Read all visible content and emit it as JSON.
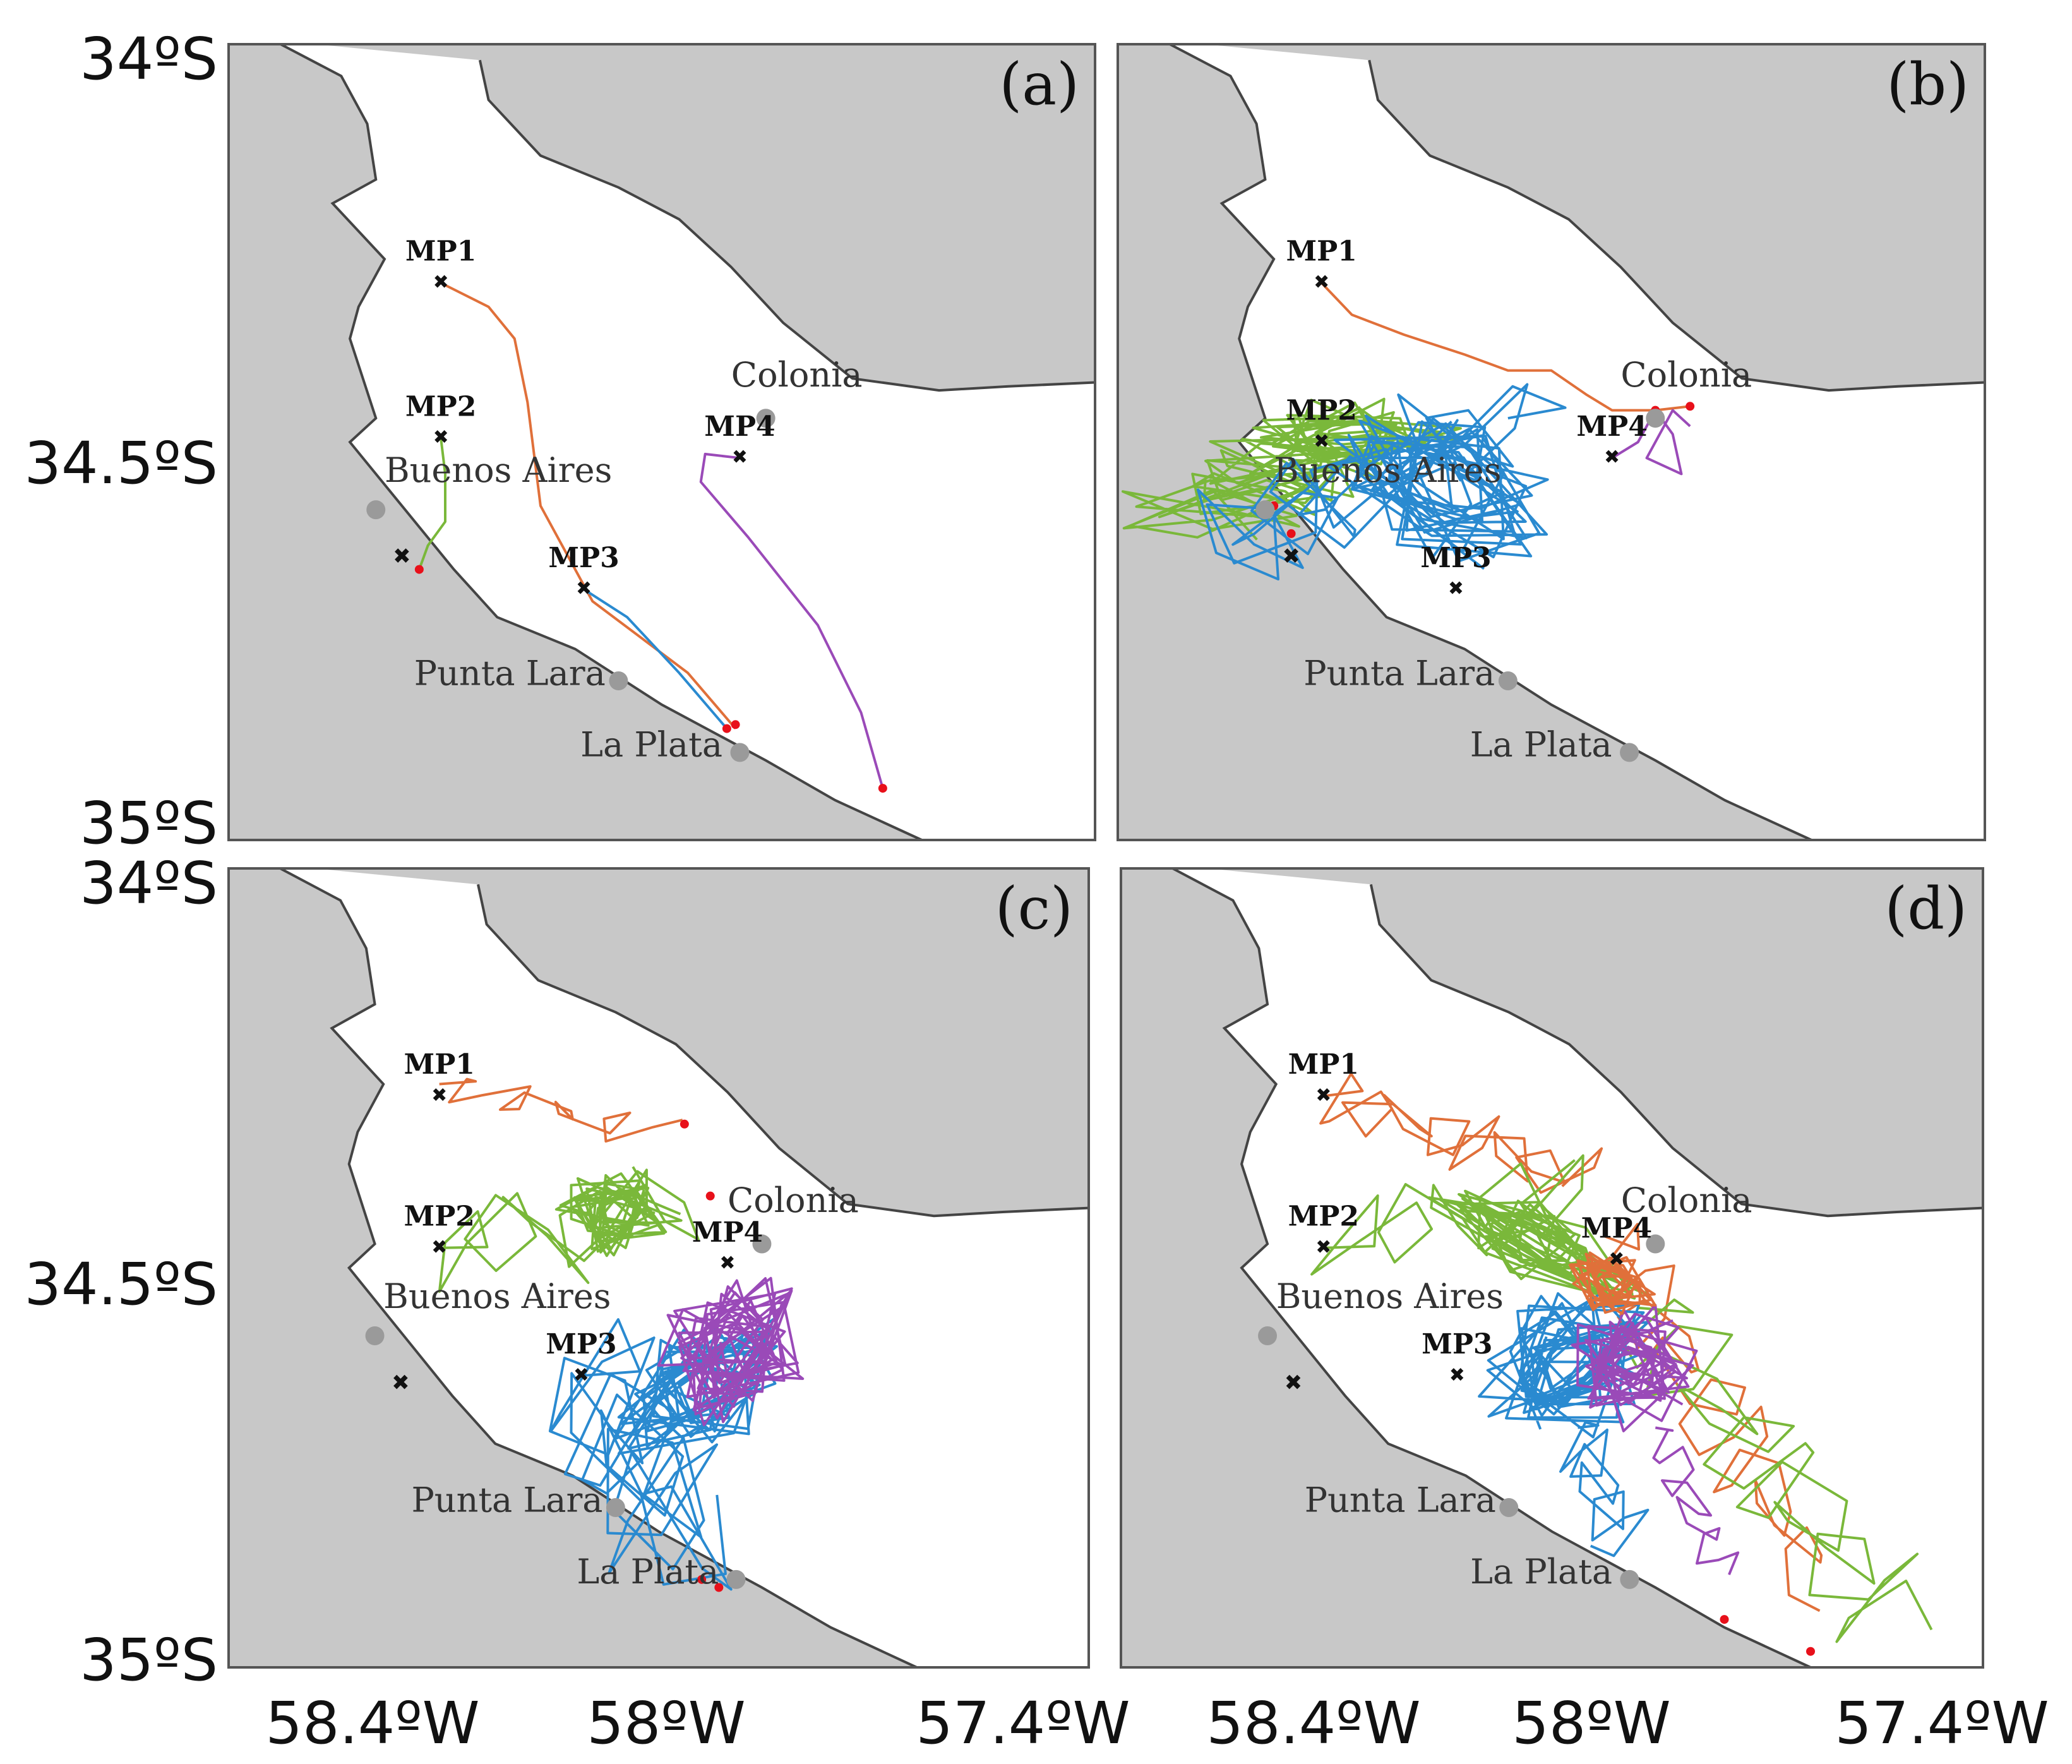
{
  "figure": {
    "y_ticks": [
      "34ºS",
      "34.5ºS",
      "35ºS"
    ],
    "x_ticks": [
      "58.4ºW",
      "58ºW",
      "57.4ºW"
    ]
  },
  "colors": {
    "land": "#c8c8c8",
    "water": "#ffffff",
    "coast": "#444444",
    "city_dot": "#9a9a9a",
    "endpoint": "#e8101a",
    "MP1": "#e0703a",
    "MP2": "#7ab83a",
    "MP3": "#2a8ad0",
    "MP4": "#9a4ab8"
  },
  "panels": [
    {
      "id": "a",
      "tag": "(a)"
    },
    {
      "id": "b",
      "tag": "(b)"
    },
    {
      "id": "c",
      "tag": "(c)"
    },
    {
      "id": "d",
      "tag": "(d)"
    }
  ],
  "markers": {
    "stations": [
      "MP1",
      "MP2",
      "MP3",
      "MP4"
    ],
    "cities": [
      "Colonia",
      "Buenos Aires",
      "Punta Lara",
      "La Plata"
    ]
  },
  "legend": "none",
  "grid": false
}
